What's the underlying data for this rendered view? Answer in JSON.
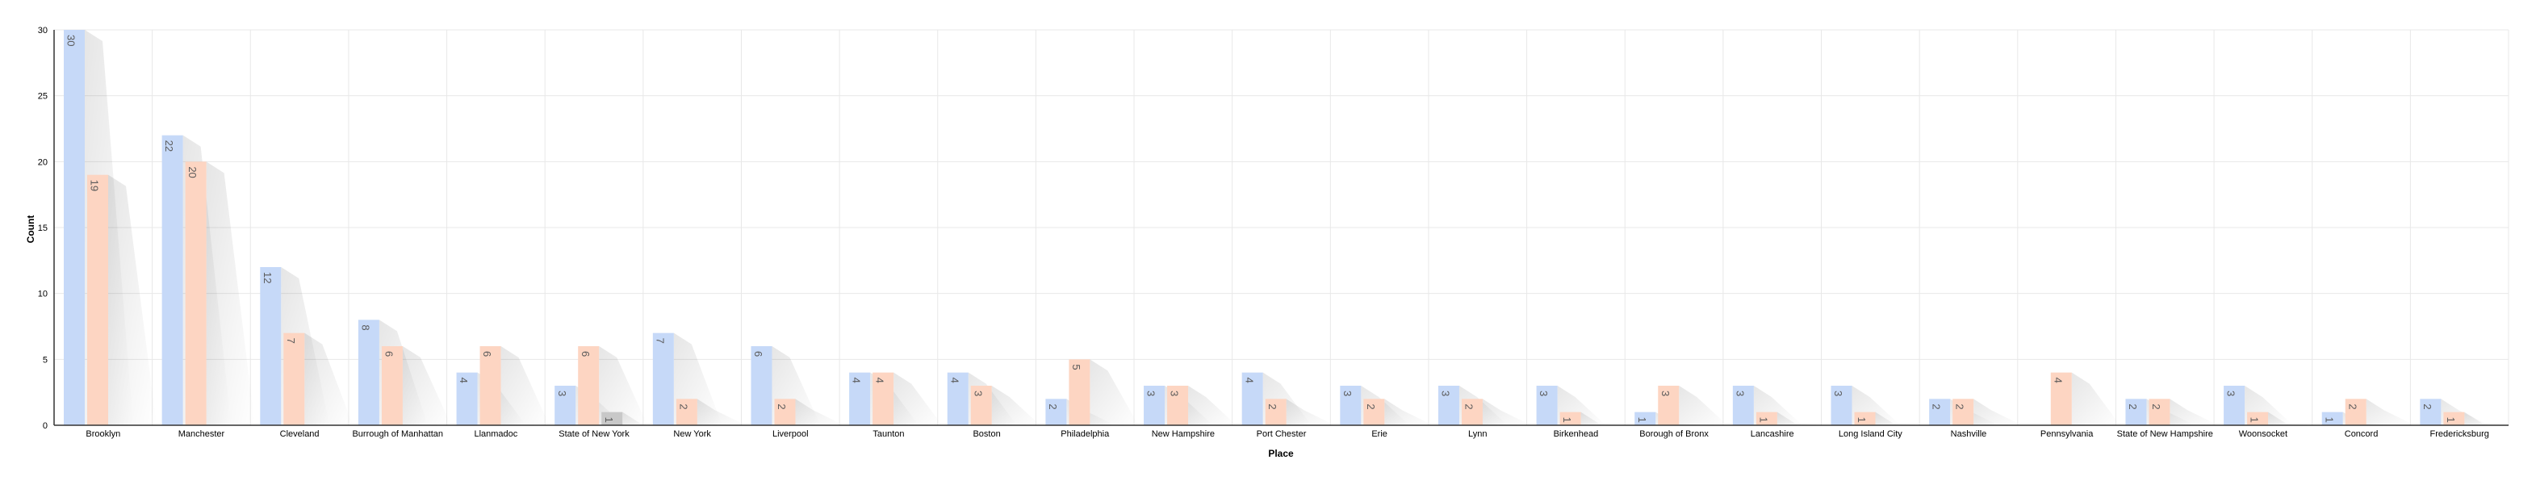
{
  "chart_data": {
    "type": "bar",
    "xlabel": "Place",
    "ylabel": "Count",
    "ylim": [
      0,
      30
    ],
    "yticks": [
      0,
      5,
      10,
      15,
      20,
      25,
      30
    ],
    "grid": true,
    "categories": [
      "Brooklyn",
      "Manchester",
      "Cleveland",
      "Burrough of Manhattan",
      "Llanmadoc",
      "State of New York",
      "New York",
      "Liverpool",
      "Taunton",
      "Boston",
      "Philadelphia",
      "New Hampshire",
      "Port Chester",
      "Erie",
      "Lynn",
      "Birkenhead",
      "Borough of Bronx",
      "Lancashire",
      "Long Island City",
      "Nashville",
      "Pennsylvania",
      "State of New Hampshire",
      "Woonsocket",
      "Concord",
      "Fredericksburg"
    ],
    "series": [
      {
        "color": "#c6d9f8",
        "values": [
          30,
          22,
          12,
          8,
          4,
          3,
          7,
          6,
          4,
          4,
          2,
          3,
          4,
          3,
          3,
          3,
          1,
          3,
          3,
          2,
          null,
          2,
          3,
          1,
          2
        ]
      },
      {
        "color": "#fdd5c2",
        "values": [
          19,
          20,
          7,
          6,
          6,
          6,
          2,
          2,
          4,
          3,
          5,
          3,
          2,
          2,
          2,
          1,
          3,
          1,
          1,
          2,
          4,
          2,
          1,
          2,
          1
        ]
      },
      {
        "color": "#c8c8c8",
        "values": [
          null,
          null,
          null,
          null,
          null,
          1,
          null,
          null,
          null,
          null,
          null,
          null,
          null,
          null,
          null,
          null,
          null,
          null,
          null,
          null,
          null,
          null,
          null,
          null,
          null
        ]
      }
    ]
  }
}
